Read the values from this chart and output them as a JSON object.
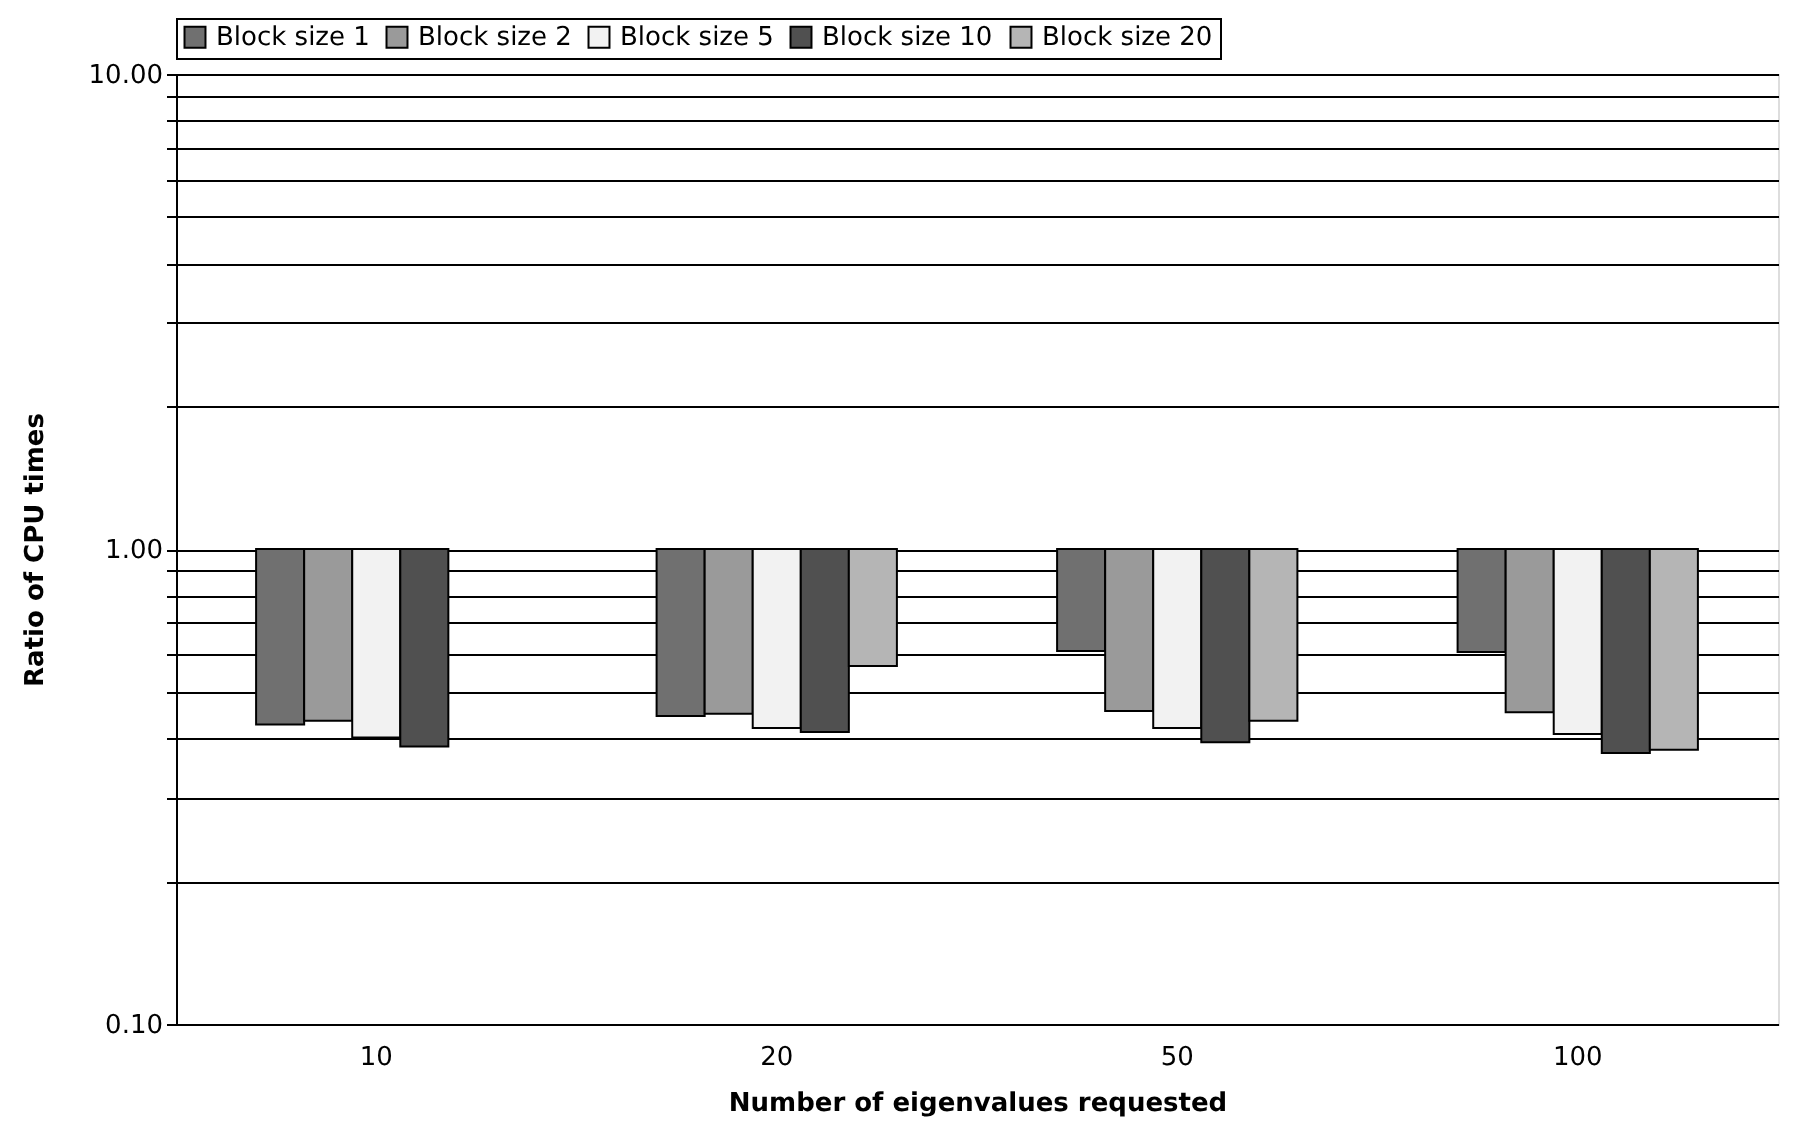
{
  "chart_data": {
    "type": "bar",
    "xlabel": "Number of eigenvalues requested",
    "ylabel": "Ratio of CPU times",
    "categories": [
      "10",
      "20",
      "50",
      "100"
    ],
    "series": [
      {
        "name": "Block size 1",
        "color": "#707070",
        "base": [
          1,
          1,
          1,
          1
        ],
        "values": [
          -0.573,
          -0.555,
          -0.39,
          -0.393
        ]
      },
      {
        "name": "Block size 2",
        "color": "#9a9a9a",
        "base": [
          1,
          1,
          1,
          1
        ],
        "values": [
          -0.565,
          -0.55,
          -0.544,
          -0.547
        ]
      },
      {
        "name": "Block size 5",
        "color": "#f2f2f2",
        "base": [
          1,
          1,
          1,
          1
        ],
        "values": [
          -0.599,
          -0.58,
          -0.58,
          -0.592
        ]
      },
      {
        "name": "Block size 10",
        "color": "#505050",
        "base": [
          1,
          1,
          1,
          1
        ],
        "values": [
          -0.616,
          -0.588,
          -0.608,
          -0.628
        ]
      },
      {
        "name": "Block size 20",
        "color": "#b5b5b5",
        "base": [
          null,
          1,
          1,
          1
        ],
        "values": [
          null,
          -0.433,
          -0.565,
          -0.622
        ]
      }
    ],
    "log": true,
    "ylim": [
      0.1,
      10
    ],
    "yticks": [
      {
        "value": 0.1,
        "label": "0.10"
      },
      {
        "value": 0.2,
        "label": null
      },
      {
        "value": 0.3,
        "label": null
      },
      {
        "value": 0.4,
        "label": null
      },
      {
        "value": 0.5,
        "label": null
      },
      {
        "value": 0.6,
        "label": null
      },
      {
        "value": 0.7,
        "label": null
      },
      {
        "value": 0.8,
        "label": null
      },
      {
        "value": 0.9,
        "label": null
      },
      {
        "value": 1,
        "label": "1.00"
      },
      {
        "value": 2,
        "label": null
      },
      {
        "value": 3,
        "label": null
      },
      {
        "value": 4,
        "label": null
      },
      {
        "value": 5,
        "label": null
      },
      {
        "value": 6,
        "label": null
      },
      {
        "value": 7,
        "label": null
      },
      {
        "value": 8,
        "label": null
      },
      {
        "value": 9,
        "label": null
      },
      {
        "value": 10,
        "label": "10.00"
      }
    ],
    "grid": "y",
    "legend": "top"
  }
}
